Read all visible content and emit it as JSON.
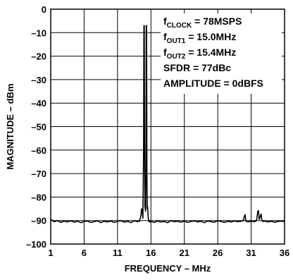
{
  "chart_data": {
    "type": "line",
    "xlabel": "FREQUENCY – MHz",
    "ylabel": "MAGNITUDE – dBm",
    "xlim": [
      1,
      36
    ],
    "ylim": [
      -100,
      0
    ],
    "xticks": [
      1,
      6,
      11,
      16,
      21,
      26,
      31,
      36
    ],
    "yticks": [
      0,
      -10,
      -20,
      -30,
      -40,
      -50,
      -60,
      -70,
      -80,
      -90,
      -100
    ],
    "xtick_labels": [
      "1",
      "6",
      "11",
      "16",
      "21",
      "26",
      "31",
      "36"
    ],
    "ytick_labels": [
      "0",
      "–10",
      "–20",
      "–30",
      "–40",
      "–50",
      "–60",
      "–70",
      "–80",
      "–90",
      "–100"
    ],
    "grid": true,
    "annotations": [
      {
        "id": "fclock",
        "main": "f",
        "sub": "CLOCK",
        "rest": " = 78MSPS"
      },
      {
        "id": "fout1",
        "main": "f",
        "sub": "OUT1",
        "rest": " = 15.0MHz"
      },
      {
        "id": "fout2",
        "main": "f",
        "sub": "OUT2",
        "rest": " = 15.4MHz"
      },
      {
        "id": "sfdr",
        "main": "SFDR = 77dBc",
        "sub": "",
        "rest": ""
      },
      {
        "id": "amplitude",
        "main": "AMPLITUDE = 0dBFS",
        "sub": "",
        "rest": ""
      }
    ],
    "series": [
      {
        "x": [
          1.0,
          1.5,
          2.0,
          2.5,
          3.0,
          3.5,
          4.0,
          4.5,
          5.0,
          5.5,
          6.0,
          6.5,
          7.0,
          7.5,
          8.0,
          8.5,
          9.0,
          9.5,
          10.0,
          10.5,
          11.0,
          11.5,
          12.0,
          12.5,
          13.0,
          13.5,
          14.0,
          14.3,
          14.5,
          14.6,
          14.7,
          14.8,
          14.9,
          14.95,
          15.0,
          15.05,
          15.1,
          15.2,
          15.25,
          15.3,
          15.35,
          15.4,
          15.45,
          15.5,
          15.6,
          15.7,
          15.8,
          15.9,
          16.0,
          16.5,
          17.0,
          17.5,
          18.0,
          18.5,
          19.0,
          19.5,
          20.0,
          20.5,
          21.0,
          21.5,
          22.0,
          22.5,
          23.0,
          23.5,
          24.0,
          24.5,
          25.0,
          25.5,
          26.0,
          26.5,
          27.0,
          27.5,
          28.0,
          28.5,
          29.0,
          29.5,
          29.8,
          30.0,
          30.1,
          30.2,
          30.5,
          31.0,
          31.5,
          31.8,
          32.0,
          32.1,
          32.2,
          32.4,
          32.5,
          32.6,
          32.8,
          33.0,
          33.5,
          34.0,
          34.5,
          35.0,
          35.5,
          36.0
        ],
        "y": [
          -89.5,
          -90.5,
          -90,
          -90.8,
          -90.2,
          -90.6,
          -90.1,
          -90.7,
          -90.3,
          -90.9,
          -90.4,
          -90.2,
          -90.8,
          -90.5,
          -90.1,
          -90.9,
          -90.3,
          -90.6,
          -90.2,
          -90.8,
          -90.4,
          -90,
          -90.7,
          -90.3,
          -90.9,
          -90.1,
          -90.5,
          -90.2,
          -88,
          -85,
          -86,
          -89,
          -60,
          -7,
          -7,
          -60,
          -84,
          -86,
          -70,
          -7,
          -7,
          -70,
          -85,
          -84,
          -89,
          -90.5,
          -90.1,
          -90.7,
          -90.3,
          -90.8,
          -90.2,
          -90.6,
          -90.4,
          -90.9,
          -90.1,
          -90.5,
          -90.3,
          -90.7,
          -90.2,
          -90.8,
          -90.4,
          -90.1,
          -90.6,
          -90.3,
          -90.9,
          -90.2,
          -90.5,
          -90.7,
          -90.1,
          -90.4,
          -90.8,
          -90.3,
          -90.6,
          -90.2,
          -90.5,
          -90.3,
          -90.1,
          -88,
          -87.5,
          -90.2,
          -90.6,
          -90.3,
          -90.5,
          -90.1,
          -86,
          -85.8,
          -89.5,
          -88,
          -87.2,
          -89.8,
          -90.4,
          -90.2,
          -90.6,
          -90.3,
          -90.7,
          -90.4,
          -90.2,
          -90.5
        ]
      }
    ]
  }
}
